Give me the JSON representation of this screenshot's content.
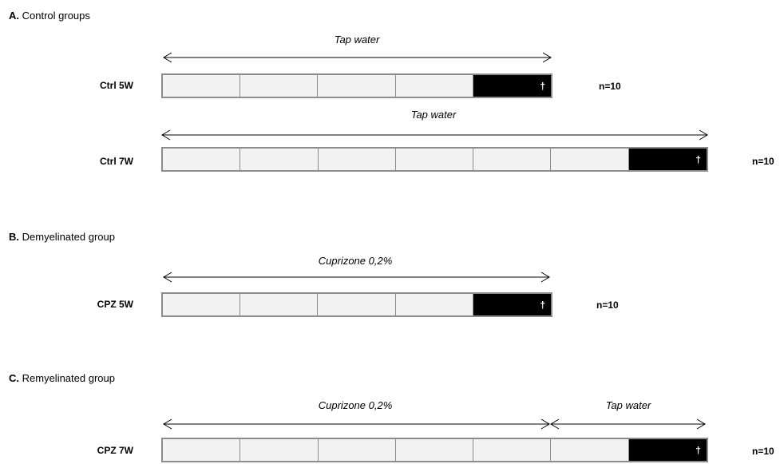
{
  "sections": {
    "a": {
      "letter": "A.",
      "title": "Control groups"
    },
    "b": {
      "letter": "B.",
      "title": "Demyelinated group"
    },
    "c": {
      "letter": "C.",
      "title": "Remyelinated group"
    }
  },
  "groups": {
    "ctrl5w": {
      "label": "Ctrl 5W",
      "n": "n=10",
      "weeks": 5,
      "treatment": "Tap water"
    },
    "ctrl7w": {
      "label": "Ctrl 7W",
      "n": "n=10",
      "weeks": 7,
      "treatment": "Tap water"
    },
    "cpz5w": {
      "label": "CPZ 5W",
      "n": "n=10",
      "weeks": 5,
      "treatment": "Cuprizone 0,2%"
    },
    "cpz7w": {
      "label": "CPZ 7W",
      "n": "n=10",
      "weeks": 7,
      "treatment_1": "Cuprizone 0,2%",
      "treatment_2": "Tap water"
    }
  },
  "sacrifice_symbol": "†",
  "colors": {
    "week_fill": "#f2f2f2",
    "final_week_fill": "#000000",
    "border": "#8c8c8c"
  }
}
